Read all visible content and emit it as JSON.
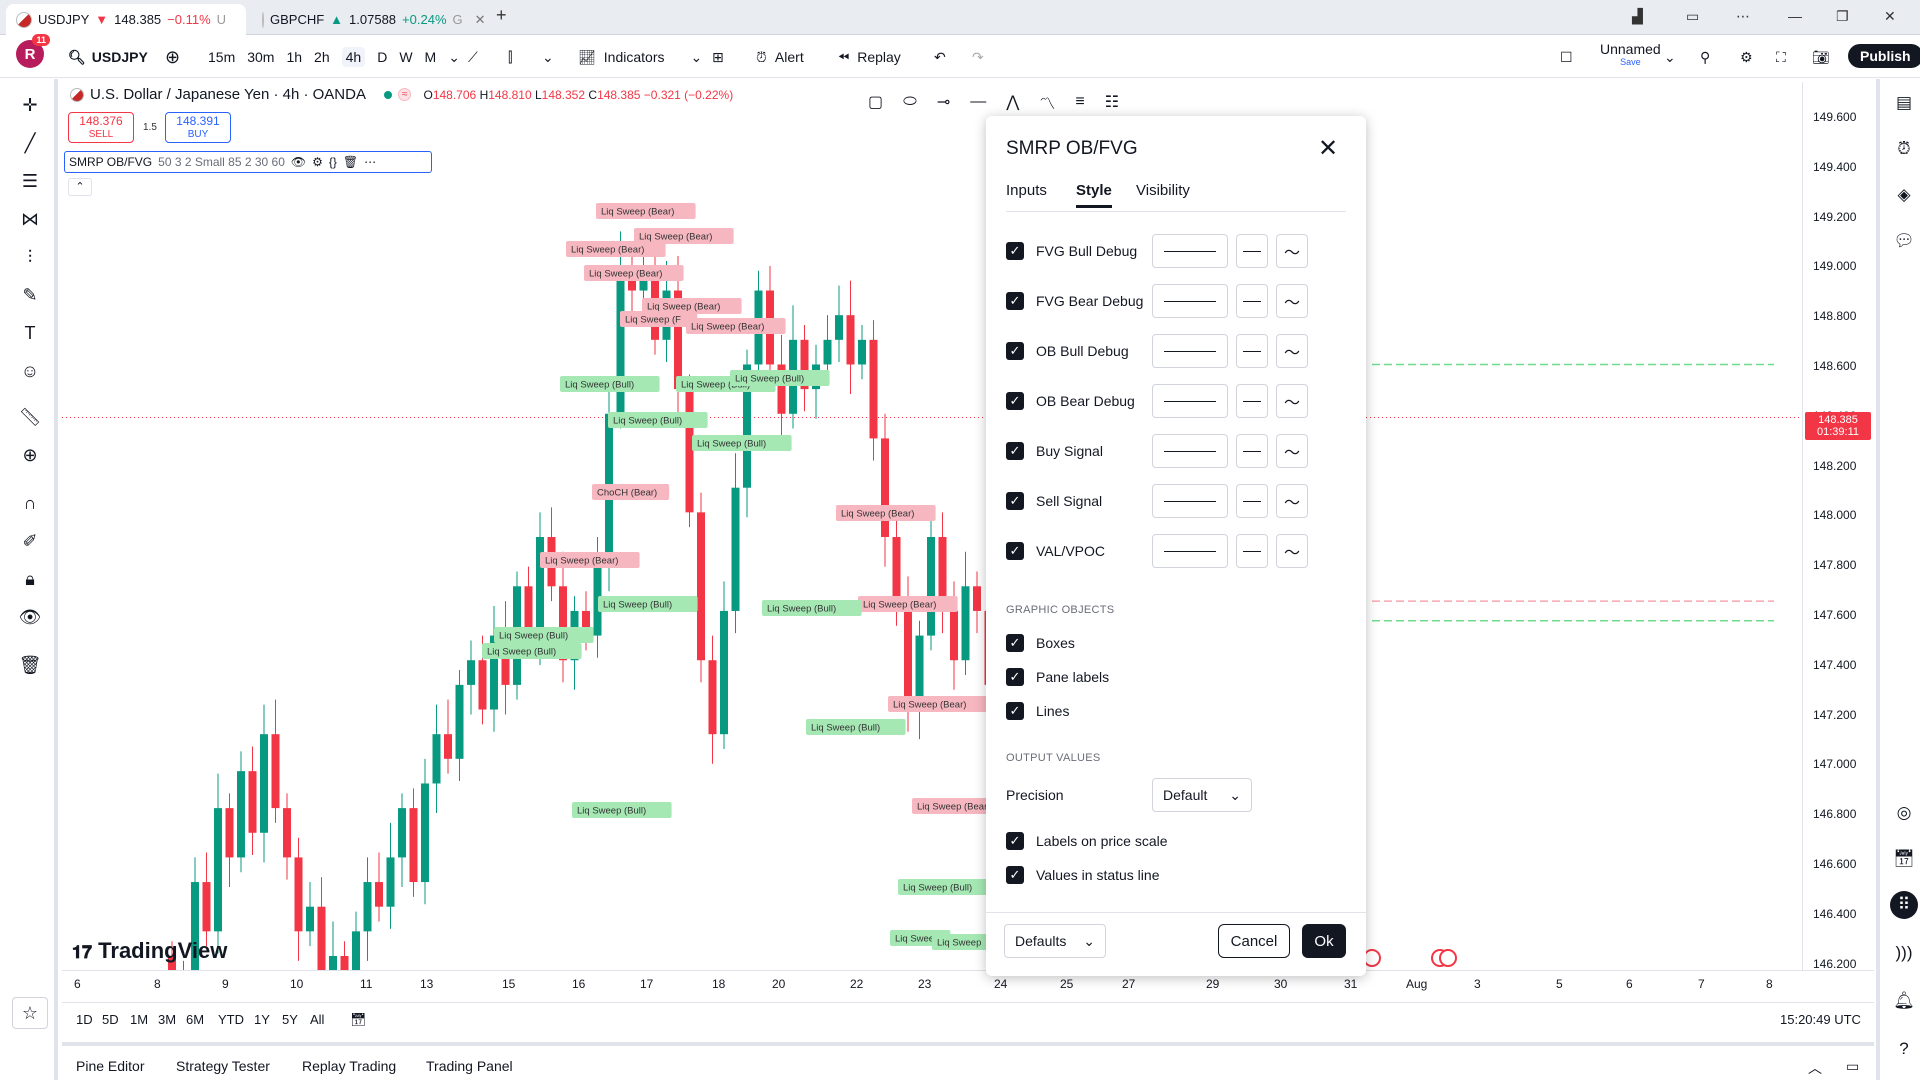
{
  "tabs": [
    {
      "symbol": "USDJPY",
      "arrow": "▼",
      "price": "148.385",
      "change": "−0.11%",
      "trunc": "U"
    },
    {
      "symbol": "GBPCHF",
      "arrow": "▲",
      "price": "1.07588",
      "change": "+0.24%",
      "trunc": "G"
    }
  ],
  "header": {
    "avatar_letter": "R",
    "avatar_badge": "11",
    "symbol": "USDJPY",
    "timeframes": [
      "15m",
      "30m",
      "1h",
      "2h",
      "4h",
      "D",
      "W",
      "M"
    ],
    "active_timeframe": "4h",
    "indicators": "Indicators",
    "alert": "Alert",
    "replay": "Replay",
    "layout_name": "Unnamed",
    "layout_save": "Save",
    "publish": "Publish"
  },
  "legend": {
    "title": "U.S. Dollar / Japanese Yen · 4h · OANDA",
    "o_label": "O",
    "o": "148.706",
    "h_label": "H",
    "h": "148.810",
    "l_label": "L",
    "l": "148.352",
    "c_label": "C",
    "c": "148.385",
    "change": "−0.321 (−0.22%)",
    "sell_price": "148.376",
    "sell_label": "SELL",
    "spread": "1.5",
    "buy_price": "148.391",
    "buy_label": "BUY",
    "indicator_name": "SMRP OB/FVG",
    "indicator_params": "50 3 2 Small 85 2 30 60"
  },
  "price_scale": [
    "149.600",
    "149.400",
    "149.200",
    "149.000",
    "148.800",
    "148.600",
    "148.400",
    "148.200",
    "148.000",
    "147.800",
    "147.600",
    "147.400",
    "147.200",
    "147.000",
    "146.800",
    "146.600",
    "146.400",
    "146.200"
  ],
  "current_price": {
    "price": "148.385",
    "countdown": "01:39:11",
    "color": "#f23645"
  },
  "time_axis": [
    "6",
    "8",
    "9",
    "10",
    "11",
    "13",
    "15",
    "16",
    "17",
    "18",
    "20",
    "22",
    "23",
    "24",
    "25",
    "27",
    "29",
    "30",
    "31",
    "Aug",
    "3",
    "5",
    "6",
    "7",
    "8"
  ],
  "chart_labels": [
    {
      "text": "Liq Sweep (Bear)",
      "kind": "bear"
    },
    {
      "text": "Liq Sweep (Bull)",
      "kind": "bull"
    },
    {
      "text": "ChoCH (Bear)",
      "kind": "bear"
    },
    {
      "text": "Liq Sweep (F",
      "kind": "bear"
    },
    {
      "text": "Liq Sweep",
      "kind": "bull"
    },
    {
      "text": "Liq Sweep (Bear",
      "kind": "bear"
    }
  ],
  "branding": "TradingView",
  "range_bar": {
    "ranges": [
      "1D",
      "5D",
      "1M",
      "3M",
      "6M",
      "YTD",
      "1Y",
      "5Y",
      "All"
    ],
    "clock": "15:20:49 UTC"
  },
  "bottom_tabs": [
    "Pine Editor",
    "Strategy Tester",
    "Replay Trading",
    "Trading Panel"
  ],
  "dialog": {
    "title": "SMRP OB/FVG",
    "tabs": [
      "Inputs",
      "Style",
      "Visibility"
    ],
    "active_tab": "Style",
    "plots": [
      "FVG Bull Debug",
      "FVG Bear Debug",
      "OB Bull Debug",
      "OB Bear Debug",
      "Buy Signal",
      "Sell Signal",
      "VAL/VPOC"
    ],
    "graphic_objects_header": "GRAPHIC OBJECTS",
    "graphic_objects": [
      "Boxes",
      "Pane labels",
      "Lines"
    ],
    "output_values_header": "OUTPUT VALUES",
    "precision_label": "Precision",
    "precision_value": "Default",
    "output_checks": [
      "Labels on price scale",
      "Values in status line"
    ],
    "defaults": "Defaults",
    "cancel": "Cancel",
    "ok": "Ok"
  },
  "colors": {
    "bull": "#089981",
    "bear": "#f23645",
    "accent": "#2962ff",
    "bull_label": "#a5e8b4",
    "bear_label": "#f7b7c0"
  }
}
